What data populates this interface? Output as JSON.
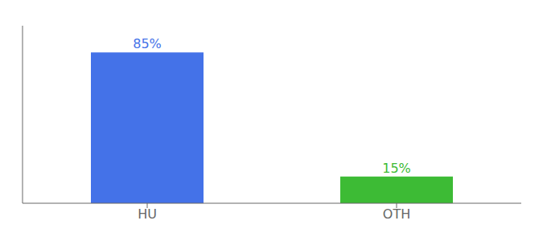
{
  "chart_data": {
    "type": "bar",
    "categories": [
      "HU",
      "OTH"
    ],
    "values": [
      85,
      15
    ],
    "value_labels": [
      "85%",
      "15%"
    ],
    "colors": [
      "#4472e8",
      "#3dbb35"
    ],
    "ylim": [
      0,
      100
    ],
    "grid": false,
    "data_labels": true,
    "tick_labels": "x"
  }
}
